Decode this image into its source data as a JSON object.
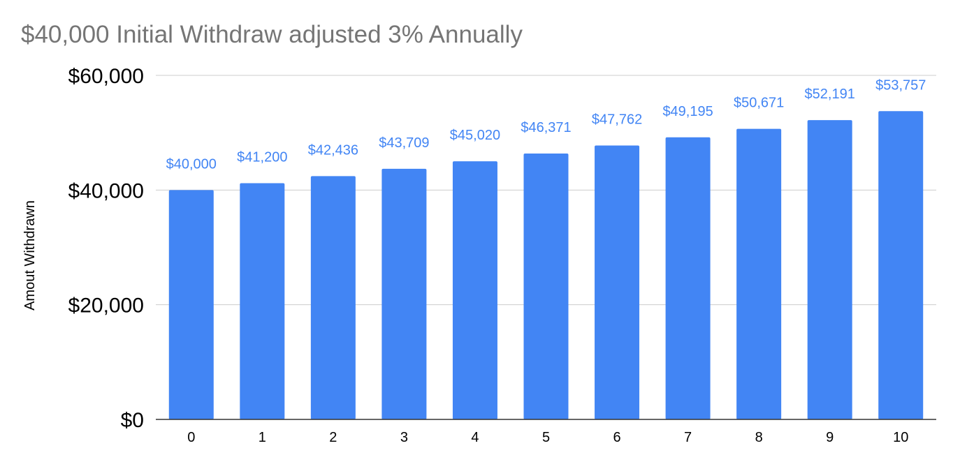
{
  "chart_data": {
    "type": "bar",
    "title": "$40,000 Initial Withdraw adjusted 3% Annually",
    "xlabel": "",
    "ylabel": "Amout Withdrawn",
    "categories": [
      "0",
      "1",
      "2",
      "3",
      "4",
      "5",
      "6",
      "7",
      "8",
      "9",
      "10"
    ],
    "values": [
      40000,
      41200,
      42436,
      43709,
      45020,
      46371,
      47762,
      49195,
      50671,
      52191,
      53757
    ],
    "data_labels": [
      "$40,000",
      "$41,200",
      "$42,436",
      "$43,709",
      "$45,020",
      "$46,371",
      "$47,762",
      "$49,195",
      "$50,671",
      "$52,191",
      "$53,757"
    ],
    "ylim": [
      0,
      60000
    ],
    "y_ticks": [
      0,
      20000,
      40000,
      60000
    ],
    "y_tick_labels": [
      "$0",
      "$20,000",
      "$40,000",
      "$60,000"
    ],
    "grid": true,
    "legend": "none",
    "colors": {
      "bar": "#4285f4",
      "data_label": "#4285f4",
      "title": "#757575",
      "grid": "#cccccc",
      "axis": "#333333"
    }
  }
}
